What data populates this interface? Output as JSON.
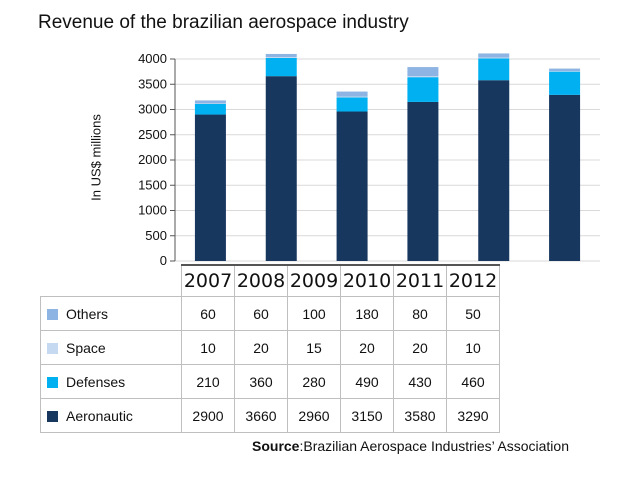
{
  "title": "Revenue of the brazilian aerospace industry",
  "source": {
    "label": "Source",
    "text": ":Brazilian Aerospace Industries’ Association"
  },
  "chart_data": {
    "type": "bar",
    "stacked": true,
    "title": "Revenue of the brazilian aerospace industry",
    "ylabel": "In US$ millions",
    "xlabel": "",
    "ylim": [
      0,
      4000
    ],
    "yticks": [
      0,
      500,
      1000,
      1500,
      2000,
      2500,
      3000,
      3500,
      4000
    ],
    "grid": true,
    "legend_position": "table-left",
    "categories": [
      "2007",
      "2008",
      "2009",
      "2010",
      "2011",
      "2012"
    ],
    "series": [
      {
        "name": "Aeronautic",
        "color": "#17375e",
        "values": [
          2900,
          3660,
          2960,
          3150,
          3580,
          3290
        ]
      },
      {
        "name": "Defenses",
        "color": "#00b0f0",
        "values": [
          210,
          360,
          280,
          490,
          430,
          460
        ]
      },
      {
        "name": "Space",
        "color": "#c5d9f1",
        "values": [
          10,
          20,
          15,
          20,
          20,
          10
        ]
      },
      {
        "name": "Others",
        "color": "#8db4e2",
        "values": [
          60,
          60,
          100,
          180,
          80,
          50
        ]
      }
    ],
    "table_order": [
      "Others",
      "Space",
      "Defenses",
      "Aeronautic"
    ]
  }
}
